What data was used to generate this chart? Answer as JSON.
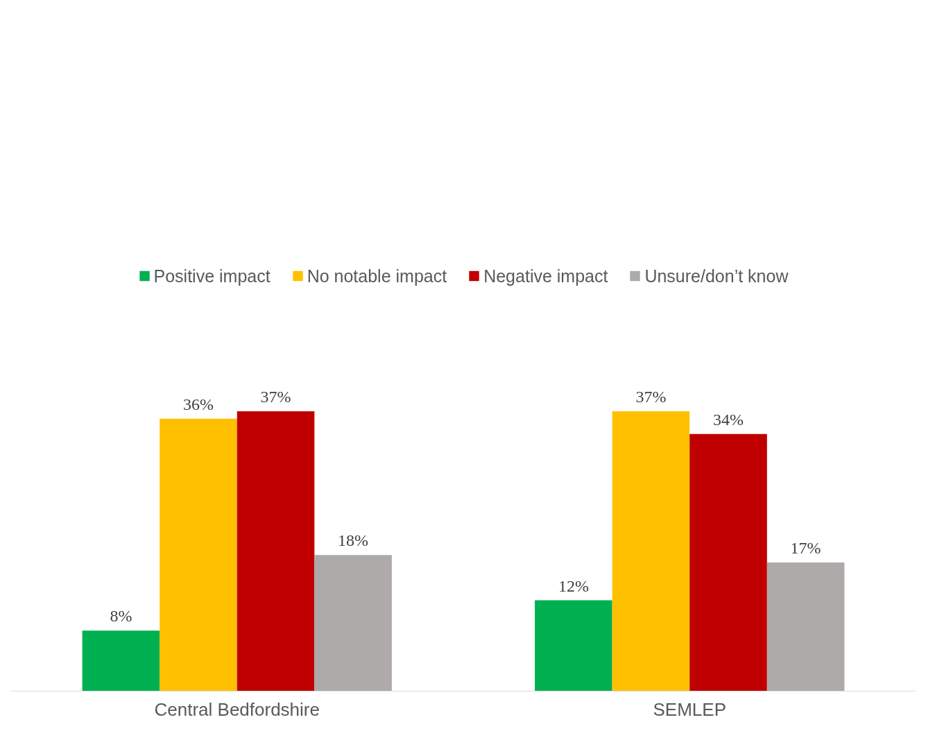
{
  "chart_data": {
    "type": "bar",
    "categories": [
      "Central Bedfordshire",
      "SEMLEP"
    ],
    "series": [
      {
        "name": "Positive impact",
        "color": "#00b050",
        "values": [
          8,
          12
        ],
        "value_labels": [
          "8%",
          "12%"
        ]
      },
      {
        "name": "No notable impact",
        "color": "#ffc000",
        "values": [
          36,
          37
        ],
        "value_labels": [
          "36%",
          "37%"
        ]
      },
      {
        "name": "Negative impact",
        "color": "#c00000",
        "values": [
          37,
          34
        ],
        "value_labels": [
          "37%",
          "34%"
        ]
      },
      {
        "name": "Unsure/don’t know",
        "color": "#aeaaaa",
        "values": [
          18,
          17
        ],
        "value_labels": [
          "18%",
          "17%"
        ]
      }
    ],
    "legend": "top",
    "grid": false
  }
}
